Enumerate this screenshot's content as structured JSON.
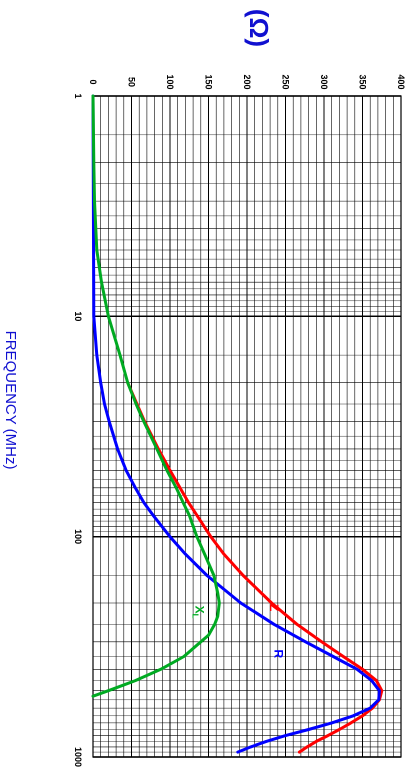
{
  "chart_data": {
    "type": "line",
    "ylabel": "(Ω)",
    "xlabel": "FREQUENCY (MHz)",
    "x_scale": "log",
    "xlim": [
      1,
      1000
    ],
    "ylim": [
      0,
      400
    ],
    "x_ticks": [
      "1",
      "10",
      "100",
      "1000"
    ],
    "y_ticks": [
      "0",
      "50",
      "100",
      "150",
      "200",
      "250",
      "300",
      "350",
      "400"
    ],
    "grid": true,
    "colors": {
      "Z": "#ff0000",
      "R": "#0000ff",
      "X": "#00aa22",
      "text": "#1010d0"
    },
    "series": [
      {
        "name": "Z",
        "color": "#ff0000",
        "x": [
          20,
          25,
          30,
          40,
          50,
          60,
          70,
          80,
          100,
          120,
          150,
          200,
          250,
          300,
          350,
          400,
          450,
          500,
          550,
          600,
          650,
          700,
          750,
          800,
          850,
          900,
          950
        ],
        "y": [
          45,
          57,
          67,
          85,
          100,
          113,
          124,
          135,
          153,
          170,
          195,
          232,
          265,
          297,
          325,
          350,
          368,
          375,
          372,
          363,
          350,
          335,
          320,
          305,
          290,
          278,
          268
        ]
      },
      {
        "name": "R",
        "color": "#0000ff",
        "x": [
          1,
          10,
          15,
          20,
          25,
          30,
          40,
          50,
          60,
          70,
          80,
          100,
          120,
          150,
          200,
          250,
          300,
          350,
          400,
          450,
          500,
          550,
          600,
          650,
          700,
          750,
          800,
          850,
          900,
          950
        ],
        "y": [
          0,
          1,
          5,
          10,
          15,
          21,
          32,
          43,
          55,
          66,
          78,
          100,
          120,
          148,
          192,
          235,
          276,
          312,
          343,
          362,
          372,
          371,
          360,
          338,
          310,
          280,
          250,
          225,
          205,
          188
        ]
      },
      {
        "name": "XL",
        "color": "#00aa22",
        "x": [
          1,
          2,
          3,
          5,
          7,
          10,
          15,
          20,
          25,
          30,
          40,
          50,
          60,
          70,
          80,
          100,
          120,
          150,
          180,
          200,
          230,
          250,
          280,
          300,
          350,
          400,
          450,
          500,
          530
        ],
        "y": [
          0,
          1,
          2,
          5,
          11,
          20,
          35,
          45,
          56,
          66,
          83,
          96,
          108,
          117,
          125,
          135,
          145,
          157,
          162,
          164,
          162,
          158,
          150,
          140,
          118,
          88,
          55,
          20,
          0
        ]
      }
    ]
  }
}
